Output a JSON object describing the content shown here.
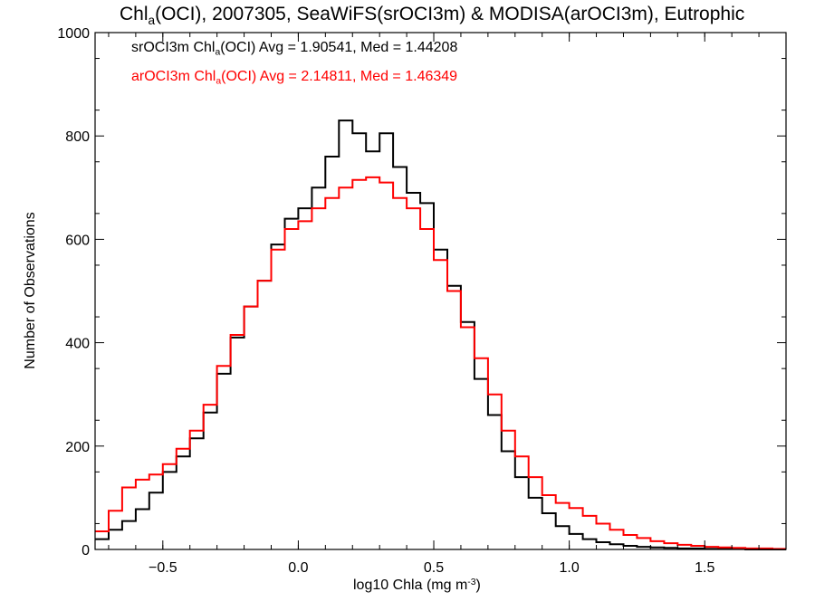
{
  "chart_data": {
    "type": "line",
    "title": {
      "prefix": "Chl",
      "sub": "a",
      "rest": "(OCI), 2007305, SeaWiFS(srOCI3m) & MODISA(arOCI3m), Eutrophic"
    },
    "xlabel": {
      "text": "log10 Chla (mg m",
      "sup": "-3",
      "suffix": ")"
    },
    "ylabel": "Number of Observations",
    "xlim": [
      -0.75,
      1.8
    ],
    "ylim": [
      0,
      1000
    ],
    "xticks": [
      -0.5,
      0.0,
      0.5,
      1.0,
      1.5
    ],
    "xtick_labels": [
      "−0.5",
      "0.0",
      "0.5",
      "1.0",
      "1.5"
    ],
    "yticks": [
      0,
      200,
      400,
      600,
      800,
      1000
    ],
    "ytick_labels": [
      "0",
      "200",
      "400",
      "600",
      "800",
      "1000"
    ],
    "grid": false,
    "legend_position": "top-left",
    "series": [
      {
        "name": "srOCI3m",
        "color": "#000000",
        "legend": {
          "pre": "srOCI3m Chl",
          "sub": "a",
          "post": "(OCI) Avg = 1.90541, Med = 1.44208"
        },
        "points": [
          [
            -0.75,
            20
          ],
          [
            -0.7,
            38
          ],
          [
            -0.65,
            55
          ],
          [
            -0.6,
            78
          ],
          [
            -0.55,
            110
          ],
          [
            -0.5,
            150
          ],
          [
            -0.45,
            180
          ],
          [
            -0.4,
            215
          ],
          [
            -0.35,
            265
          ],
          [
            -0.3,
            340
          ],
          [
            -0.25,
            410
          ],
          [
            -0.2,
            470
          ],
          [
            -0.15,
            520
          ],
          [
            -0.1,
            590
          ],
          [
            -0.05,
            640
          ],
          [
            0.0,
            660
          ],
          [
            0.05,
            700
          ],
          [
            0.1,
            760
          ],
          [
            0.15,
            830
          ],
          [
            0.2,
            805
          ],
          [
            0.25,
            770
          ],
          [
            0.3,
            805
          ],
          [
            0.35,
            740
          ],
          [
            0.4,
            690
          ],
          [
            0.45,
            670
          ],
          [
            0.5,
            580
          ],
          [
            0.55,
            510
          ],
          [
            0.6,
            440
          ],
          [
            0.65,
            330
          ],
          [
            0.7,
            260
          ],
          [
            0.75,
            190
          ],
          [
            0.8,
            140
          ],
          [
            0.85,
            100
          ],
          [
            0.9,
            70
          ],
          [
            0.95,
            45
          ],
          [
            1.0,
            30
          ],
          [
            1.05,
            20
          ],
          [
            1.1,
            14
          ],
          [
            1.15,
            10
          ],
          [
            1.2,
            7
          ],
          [
            1.25,
            5
          ],
          [
            1.3,
            4
          ],
          [
            1.35,
            3
          ],
          [
            1.4,
            2
          ],
          [
            1.45,
            2
          ],
          [
            1.5,
            1
          ],
          [
            1.55,
            1
          ],
          [
            1.6,
            1
          ],
          [
            1.65,
            0
          ],
          [
            1.7,
            0
          ],
          [
            1.75,
            0
          ],
          [
            1.8,
            0
          ]
        ]
      },
      {
        "name": "arOCI3m",
        "color": "#ff0000",
        "legend": {
          "pre": "arOCI3m Chl",
          "sub": "a",
          "post": "(OCI) Avg = 2.14811, Med = 1.46349"
        },
        "points": [
          [
            -0.75,
            35
          ],
          [
            -0.7,
            75
          ],
          [
            -0.65,
            120
          ],
          [
            -0.6,
            135
          ],
          [
            -0.55,
            145
          ],
          [
            -0.5,
            165
          ],
          [
            -0.45,
            195
          ],
          [
            -0.4,
            230
          ],
          [
            -0.35,
            280
          ],
          [
            -0.3,
            355
          ],
          [
            -0.25,
            415
          ],
          [
            -0.2,
            470
          ],
          [
            -0.15,
            520
          ],
          [
            -0.1,
            580
          ],
          [
            -0.05,
            620
          ],
          [
            0.0,
            635
          ],
          [
            0.05,
            660
          ],
          [
            0.1,
            680
          ],
          [
            0.15,
            700
          ],
          [
            0.2,
            715
          ],
          [
            0.25,
            720
          ],
          [
            0.3,
            710
          ],
          [
            0.35,
            680
          ],
          [
            0.4,
            660
          ],
          [
            0.45,
            620
          ],
          [
            0.5,
            560
          ],
          [
            0.55,
            500
          ],
          [
            0.6,
            430
          ],
          [
            0.65,
            370
          ],
          [
            0.7,
            300
          ],
          [
            0.75,
            230
          ],
          [
            0.8,
            180
          ],
          [
            0.85,
            140
          ],
          [
            0.9,
            105
          ],
          [
            0.95,
            90
          ],
          [
            1.0,
            80
          ],
          [
            1.05,
            65
          ],
          [
            1.1,
            50
          ],
          [
            1.15,
            38
          ],
          [
            1.2,
            28
          ],
          [
            1.25,
            22
          ],
          [
            1.3,
            16
          ],
          [
            1.35,
            12
          ],
          [
            1.4,
            9
          ],
          [
            1.45,
            7
          ],
          [
            1.5,
            5
          ],
          [
            1.55,
            4
          ],
          [
            1.6,
            3
          ],
          [
            1.65,
            2
          ],
          [
            1.7,
            2
          ],
          [
            1.75,
            1
          ],
          [
            1.8,
            1
          ]
        ]
      }
    ]
  }
}
